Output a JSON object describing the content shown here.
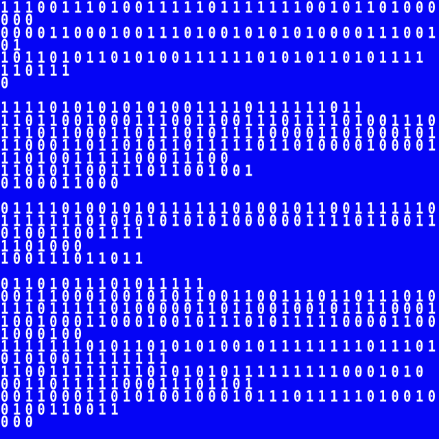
{
  "background_color": "#0505f5",
  "text_color": "#ffffff",
  "lines": [
    "111001110100111110111111100101101000",
    "000",
    "000011000100111010010101010000111001",
    "01",
    "10110101101010011111101010110101111",
    "110111",
    "0",
    "",
    "111101010101010011110111111011",
    "110110010001110011001110111101001110",
    "111011000110111010111100001101000101",
    "110001101101011011111011010000100001",
    "1101001111100011100",
    "110101100111011001001",
    "0100011000",
    "",
    "011110100101011111101001011001111110",
    "111111101010101010100000011110110011",
    "010011001111",
    "1101000",
    "100111011011",
    "",
    "01101011101011111",
    "001110001001010110011001110110111010",
    "111011111010000011011001001011110001",
    "100100011000100101110101111100001100",
    "1000100",
    "111111101011010101001011111111011101",
    "01010011111111",
    "11001111111101010101111111110001010",
    "001101111100011101101",
    "001100011010100100010111011111010010",
    "0100110011",
    "000"
  ]
}
